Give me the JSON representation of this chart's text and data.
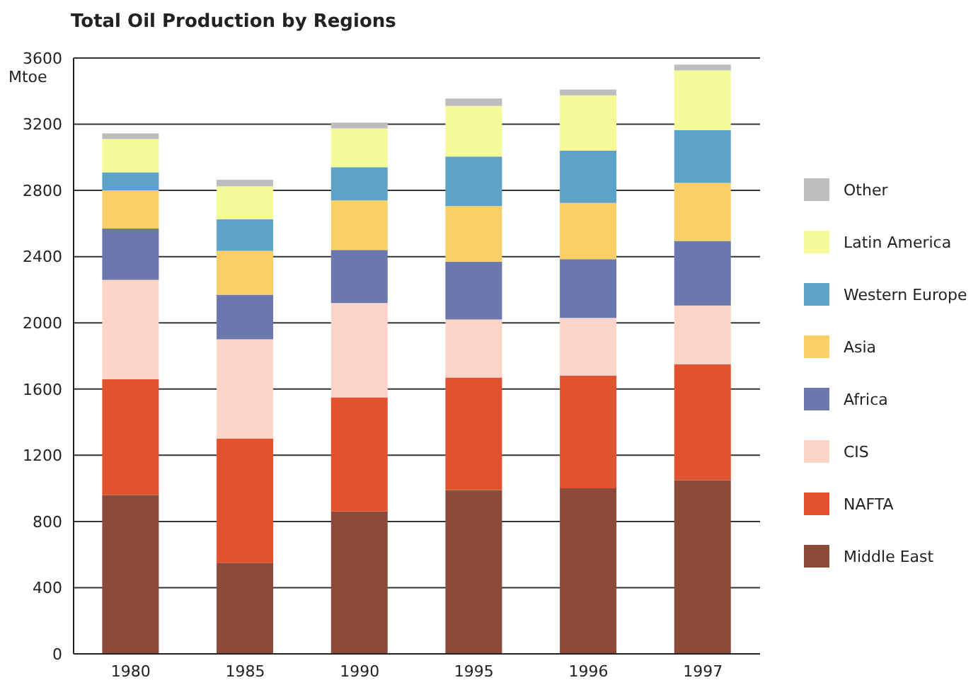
{
  "chart_data": {
    "type": "bar",
    "title": "Total Oil Production by Regions",
    "ylabel": "Mtoe",
    "categories": [
      "1980",
      "1985",
      "1990",
      "1995",
      "1996",
      "1997"
    ],
    "stacked": true,
    "series": [
      {
        "name": "Middle East",
        "color": "#8b4a3a",
        "values": [
          960,
          550,
          860,
          990,
          1000,
          1050
        ]
      },
      {
        "name": "NAFTA",
        "color": "#e0532e",
        "values": [
          700,
          750,
          690,
          680,
          680,
          700
        ]
      },
      {
        "name": "CIS",
        "color": "#fcd5c8",
        "values": [
          600,
          600,
          570,
          350,
          350,
          355
        ]
      },
      {
        "name": "Africa",
        "color": "#6b78ae",
        "values": [
          310,
          270,
          320,
          350,
          355,
          390
        ]
      },
      {
        "name": "Asia",
        "color": "#fbcf68",
        "values": [
          230,
          265,
          300,
          335,
          340,
          350
        ]
      },
      {
        "name": "Western Europe",
        "color": "#5da3c8",
        "values": [
          110,
          190,
          200,
          300,
          315,
          320
        ]
      },
      {
        "name": "Latin America",
        "color": "#f4fb98",
        "values": [
          200,
          200,
          235,
          305,
          335,
          360
        ]
      },
      {
        "name": "Other",
        "color": "#bdbdbd",
        "values": [
          35,
          40,
          35,
          45,
          35,
          35
        ]
      }
    ],
    "ylim": [
      0,
      3600
    ],
    "yticks": [
      0,
      400,
      800,
      1200,
      1600,
      2000,
      2400,
      2800,
      3200,
      3600
    ],
    "grid": "y",
    "legend": "right"
  }
}
